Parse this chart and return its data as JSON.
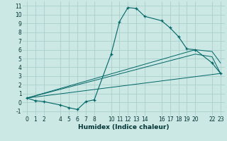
{
  "xlabel": "Humidex (Indice chaleur)",
  "background_color": "#cce8e4",
  "grid_color": "#aacfcc",
  "line_color": "#006666",
  "xlim": [
    -0.5,
    23.5
  ],
  "ylim": [
    -1.5,
    11.5
  ],
  "xticks": [
    0,
    1,
    2,
    4,
    5,
    6,
    7,
    8,
    10,
    11,
    12,
    13,
    14,
    16,
    17,
    18,
    19,
    20,
    22,
    23
  ],
  "yticks": [
    -1,
    0,
    1,
    2,
    3,
    4,
    5,
    6,
    7,
    8,
    9,
    10,
    11
  ],
  "main_x": [
    0,
    1,
    2,
    4,
    5,
    6,
    7,
    8,
    10,
    11,
    12,
    13,
    14,
    16,
    17,
    18,
    19,
    20,
    22,
    23
  ],
  "main_y": [
    0.5,
    0.2,
    0.1,
    -0.3,
    -0.6,
    -0.8,
    0.1,
    0.3,
    5.5,
    9.2,
    10.8,
    10.7,
    9.8,
    9.3,
    8.5,
    7.5,
    6.1,
    6.0,
    4.5,
    3.3
  ],
  "ref_lines": [
    {
      "x": [
        0,
        23
      ],
      "y": [
        0.5,
        3.3
      ]
    },
    {
      "x": [
        0,
        20,
        22,
        23
      ],
      "y": [
        0.5,
        6.0,
        5.8,
        4.5
      ]
    },
    {
      "x": [
        0,
        20,
        22,
        23
      ],
      "y": [
        0.5,
        5.5,
        5.2,
        3.3
      ]
    }
  ]
}
